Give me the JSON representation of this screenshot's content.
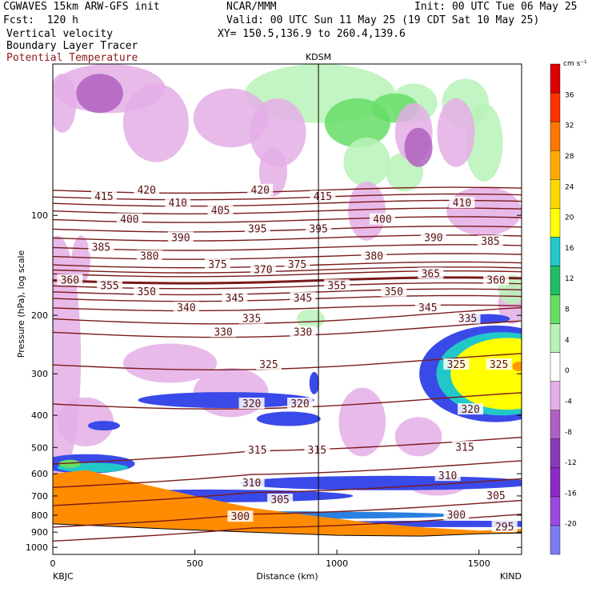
{
  "header": {
    "model": "CGWAVES 15km ARW-GFS init",
    "center": "NCAR/MMM",
    "init": "Init: 00 UTC Tue 06 May 25",
    "fcst": "Fcst:  120 h",
    "valid": "Valid: 00 UTC Sun 11 May 25 (19 CDT Sat 10 May 25)",
    "field1": "Vertical velocity",
    "xy": "XY= 150.5,136.9 to 260.4,139.6",
    "field2": "Boundary Layer Tracer",
    "field3": "Potential Temperature"
  },
  "chart_data": {
    "type": "heatmap",
    "xlabel": "Distance (km)",
    "ylabel": "Pressure (hPa), log scale",
    "y_scale": "log",
    "xlim": [
      0,
      1650
    ],
    "ylim": [
      1050,
      35
    ],
    "x_ticks": [
      0,
      500,
      1000,
      1500
    ],
    "y_ticks": [
      100,
      200,
      300,
      400,
      500,
      600,
      700,
      800,
      900,
      1000
    ],
    "endpoints": {
      "left": "KBJC",
      "right": "KIND"
    },
    "station_marker": {
      "label": "KDSM",
      "x_km": 935
    },
    "colorbar": {
      "unit": "cm s⁻¹",
      "levels": [
        -20,
        -16,
        -12,
        -8,
        -4,
        0,
        4,
        8,
        12,
        16,
        20,
        24,
        28,
        32,
        36
      ],
      "colors": [
        "#7c7cf0",
        "#9a4ae0",
        "#8a2ac8",
        "#8a3ab8",
        "#b060c0",
        "#e4aee6",
        "#ffffff",
        "#b8f2b8",
        "#66dd66",
        "#22bb66",
        "#22c8c8",
        "#ffff00",
        "#ffd800",
        "#ffaa00",
        "#ff7700",
        "#ff3300",
        "#dd0000"
      ]
    },
    "theta_contours": [
      {
        "value": 295,
        "label_x_km": 1590,
        "p": 870
      },
      {
        "value": 300,
        "label_x_km": 1420,
        "p": 790
      },
      {
        "value": 305,
        "label_x_km": 1560,
        "p": 680
      },
      {
        "value": 310,
        "label_x_km": 1380,
        "p": 600
      },
      {
        "value": 315,
        "label_x_km": 720,
        "p": 510
      },
      {
        "value": 320,
        "label_x_km": 700,
        "p": 370
      },
      {
        "value": 325,
        "label_x_km": 760,
        "p": 282
      },
      {
        "value": 330,
        "label_x_km": 600,
        "p": 225
      },
      {
        "value": 335,
        "label_x_km": 700,
        "p": 205
      },
      {
        "value": 340,
        "label_x_km": 470,
        "p": 190
      },
      {
        "value": 345,
        "label_x_km": 630,
        "p": 178
      },
      {
        "value": 350,
        "label_x_km": 330,
        "p": 170
      },
      {
        "value": 355,
        "label_x_km": 200,
        "p": 163
      },
      {
        "value": 360,
        "label_x_km": 60,
        "p": 157
      },
      {
        "value": 365,
        "label_x_km": 1330,
        "p": 150
      },
      {
        "value": 370,
        "label_x_km": 760,
        "p": 146
      },
      {
        "value": 375,
        "label_x_km": 560,
        "p": 141
      },
      {
        "value": 380,
        "label_x_km": 330,
        "p": 133
      },
      {
        "value": 385,
        "label_x_km": 170,
        "p": 125
      },
      {
        "value": 390,
        "label_x_km": 440,
        "p": 117
      },
      {
        "value": 395,
        "label_x_km": 720,
        "p": 110
      },
      {
        "value": 400,
        "label_x_km": 300,
        "p": 103
      },
      {
        "value": 405,
        "label_x_km": 580,
        "p": 97
      },
      {
        "value": 410,
        "label_x_km": 440,
        "p": 92
      },
      {
        "value": 415,
        "label_x_km": 180,
        "p": 88
      },
      {
        "value": 420,
        "label_x_km": 330,
        "p": 84
      }
    ],
    "contour_labels": [
      {
        "text": "415",
        "x": 180,
        "p": 88
      },
      {
        "text": "420",
        "x": 330,
        "p": 84
      },
      {
        "text": "410",
        "x": 440,
        "p": 92
      },
      {
        "text": "420",
        "x": 730,
        "p": 84
      },
      {
        "text": "415",
        "x": 950,
        "p": 88
      },
      {
        "text": "410",
        "x": 1440,
        "p": 92
      },
      {
        "text": "400",
        "x": 270,
        "p": 103
      },
      {
        "text": "405",
        "x": 590,
        "p": 97
      },
      {
        "text": "400",
        "x": 1160,
        "p": 103
      },
      {
        "text": "390",
        "x": 450,
        "p": 117
      },
      {
        "text": "395",
        "x": 720,
        "p": 110
      },
      {
        "text": "395",
        "x": 935,
        "p": 110
      },
      {
        "text": "390",
        "x": 1340,
        "p": 117
      },
      {
        "text": "385",
        "x": 1540,
        "p": 120
      },
      {
        "text": "385",
        "x": 170,
        "p": 125
      },
      {
        "text": "380",
        "x": 340,
        "p": 133
      },
      {
        "text": "375",
        "x": 580,
        "p": 141
      },
      {
        "text": "370",
        "x": 740,
        "p": 146
      },
      {
        "text": "375",
        "x": 860,
        "p": 141
      },
      {
        "text": "380",
        "x": 1130,
        "p": 133
      },
      {
        "text": "365",
        "x": 1330,
        "p": 150
      },
      {
        "text": "360",
        "x": 1560,
        "p": 157
      },
      {
        "text": "360",
        "x": 60,
        "p": 157
      },
      {
        "text": "355",
        "x": 200,
        "p": 163
      },
      {
        "text": "350",
        "x": 330,
        "p": 170
      },
      {
        "text": "355",
        "x": 1000,
        "p": 163
      },
      {
        "text": "350",
        "x": 1200,
        "p": 170
      },
      {
        "text": "340",
        "x": 470,
        "p": 190
      },
      {
        "text": "345",
        "x": 640,
        "p": 178
      },
      {
        "text": "345",
        "x": 880,
        "p": 178
      },
      {
        "text": "345",
        "x": 1320,
        "p": 190
      },
      {
        "text": "335",
        "x": 700,
        "p": 205
      },
      {
        "text": "330",
        "x": 600,
        "p": 225
      },
      {
        "text": "330",
        "x": 880,
        "p": 225
      },
      {
        "text": "335",
        "x": 1460,
        "p": 205
      },
      {
        "text": "325",
        "x": 760,
        "p": 282
      },
      {
        "text": "325",
        "x": 1420,
        "p": 282
      },
      {
        "text": "325",
        "x": 1570,
        "p": 282
      },
      {
        "text": "320",
        "x": 700,
        "p": 370
      },
      {
        "text": "320",
        "x": 870,
        "p": 370
      },
      {
        "text": "320",
        "x": 1470,
        "p": 385
      },
      {
        "text": "315",
        "x": 720,
        "p": 510
      },
      {
        "text": "315",
        "x": 930,
        "p": 510
      },
      {
        "text": "315",
        "x": 1450,
        "p": 500
      },
      {
        "text": "310",
        "x": 700,
        "p": 640
      },
      {
        "text": "310",
        "x": 1390,
        "p": 610
      },
      {
        "text": "305",
        "x": 800,
        "p": 720
      },
      {
        "text": "305",
        "x": 1560,
        "p": 700
      },
      {
        "text": "300",
        "x": 1420,
        "p": 800
      },
      {
        "text": "300",
        "x": 660,
        "p": 810
      },
      {
        "text": "295",
        "x": 1590,
        "p": 870
      }
    ]
  }
}
